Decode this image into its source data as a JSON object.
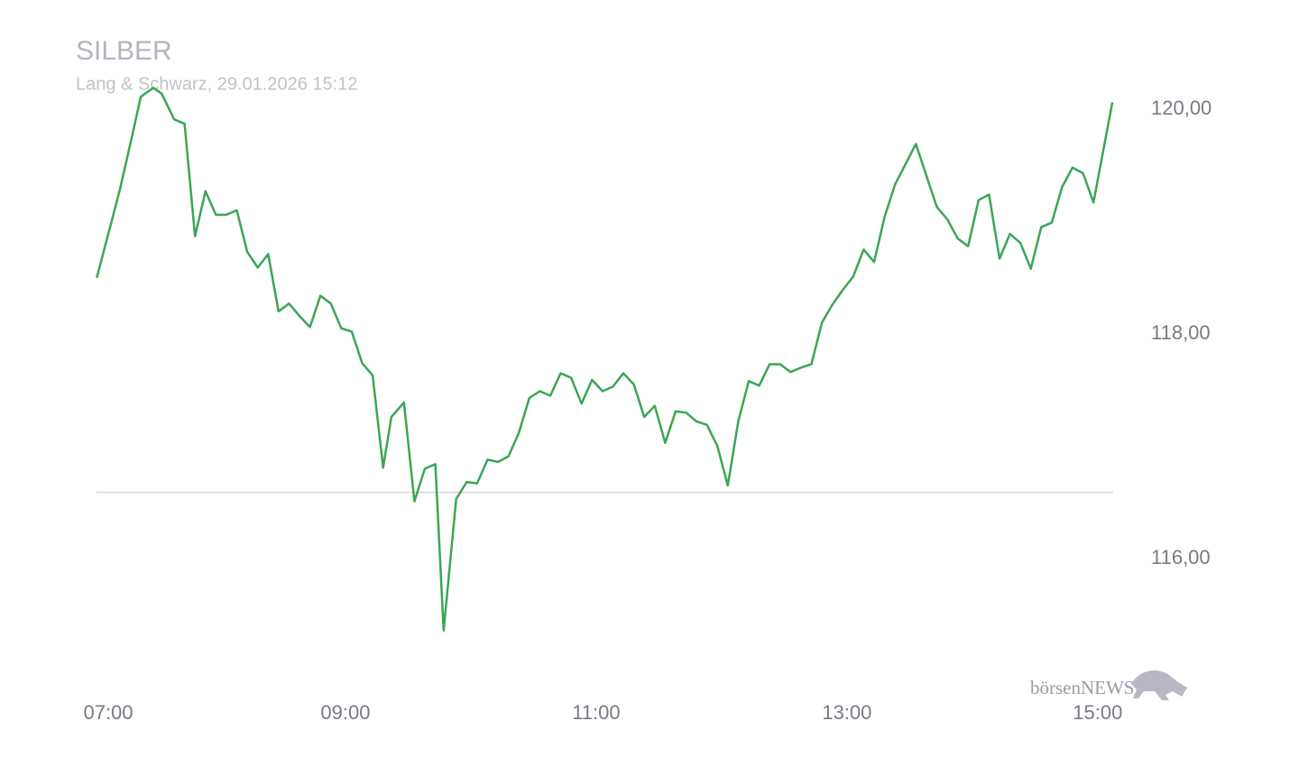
{
  "chart_data": {
    "type": "line",
    "title": "SILBER",
    "subtitle": "Lang & Schwarz, 29.01.2026 15:12",
    "brand": "börsenNEWS",
    "x": [
      "07:01",
      "07:12",
      "07:18",
      "07:22",
      "07:28",
      "07:32",
      "07:38",
      "07:43",
      "07:48",
      "07:53",
      "07:58",
      "08:03",
      "08:08",
      "08:13",
      "08:18",
      "08:23",
      "08:28",
      "08:33",
      "08:38",
      "08:43",
      "08:48",
      "08:53",
      "08:58",
      "09:03",
      "09:08",
      "09:13",
      "09:18",
      "09:22",
      "09:28",
      "09:33",
      "09:38",
      "09:43",
      "09:47",
      "09:53",
      "09:58",
      "10:03",
      "10:08",
      "10:13",
      "10:18",
      "10:23",
      "10:28",
      "10:33",
      "10:38",
      "10:43",
      "10:48",
      "10:53",
      "10:58",
      "11:03",
      "11:08",
      "11:13",
      "11:18",
      "11:23",
      "11:28",
      "11:33",
      "11:38",
      "11:43",
      "11:48",
      "11:53",
      "11:58",
      "12:03",
      "12:08",
      "12:13",
      "12:18",
      "12:23",
      "12:28",
      "12:33",
      "12:38",
      "12:43",
      "12:48",
      "12:53",
      "12:58",
      "13:03",
      "13:08",
      "13:13",
      "13:18",
      "13:23",
      "13:33",
      "13:43",
      "13:48",
      "13:53",
      "13:58",
      "14:03",
      "14:08",
      "14:13",
      "14:18",
      "14:23",
      "14:28",
      "14:33",
      "14:38",
      "14:43",
      "14:48",
      "14:53",
      "14:58",
      "15:07"
    ],
    "series": [
      {
        "name": "SILBER",
        "color": "#3aa655",
        "values": [
          118.5,
          119.28,
          119.77,
          120.11,
          120.19,
          120.14,
          119.91,
          119.87,
          118.87,
          119.27,
          119.06,
          119.06,
          119.1,
          118.73,
          118.59,
          118.71,
          118.2,
          118.27,
          118.16,
          118.06,
          118.34,
          118.27,
          118.05,
          118.02,
          117.74,
          117.63,
          116.81,
          117.26,
          117.39,
          116.51,
          116.8,
          116.84,
          115.36,
          116.53,
          116.68,
          116.67,
          116.88,
          116.86,
          116.91,
          117.12,
          117.43,
          117.49,
          117.45,
          117.65,
          117.61,
          117.38,
          117.59,
          117.49,
          117.53,
          117.65,
          117.55,
          117.26,
          117.36,
          117.03,
          117.31,
          117.3,
          117.22,
          117.19,
          117.0,
          116.65,
          117.22,
          117.58,
          117.54,
          117.73,
          117.73,
          117.66,
          117.7,
          117.73,
          118.1,
          118.26,
          118.39,
          118.51,
          118.75,
          118.64,
          119.04,
          119.33,
          119.69,
          119.13,
          119.02,
          118.85,
          118.78,
          119.19,
          119.24,
          118.67,
          118.89,
          118.81,
          118.58,
          118.95,
          118.99,
          119.31,
          119.48,
          119.43,
          119.17,
          120.06
        ]
      }
    ],
    "reference_line": 116.59,
    "xlim": [
      "07:00",
      "15:10"
    ],
    "xticks": [
      "07:00",
      "09:00",
      "11:00",
      "13:00",
      "15:00"
    ],
    "ylim": [
      115.2,
      120.4
    ],
    "yticks": [
      {
        "value": 116,
        "label": "116,00"
      },
      {
        "value": 118,
        "label": "118,00"
      },
      {
        "value": 120,
        "label": "120,00"
      }
    ]
  }
}
